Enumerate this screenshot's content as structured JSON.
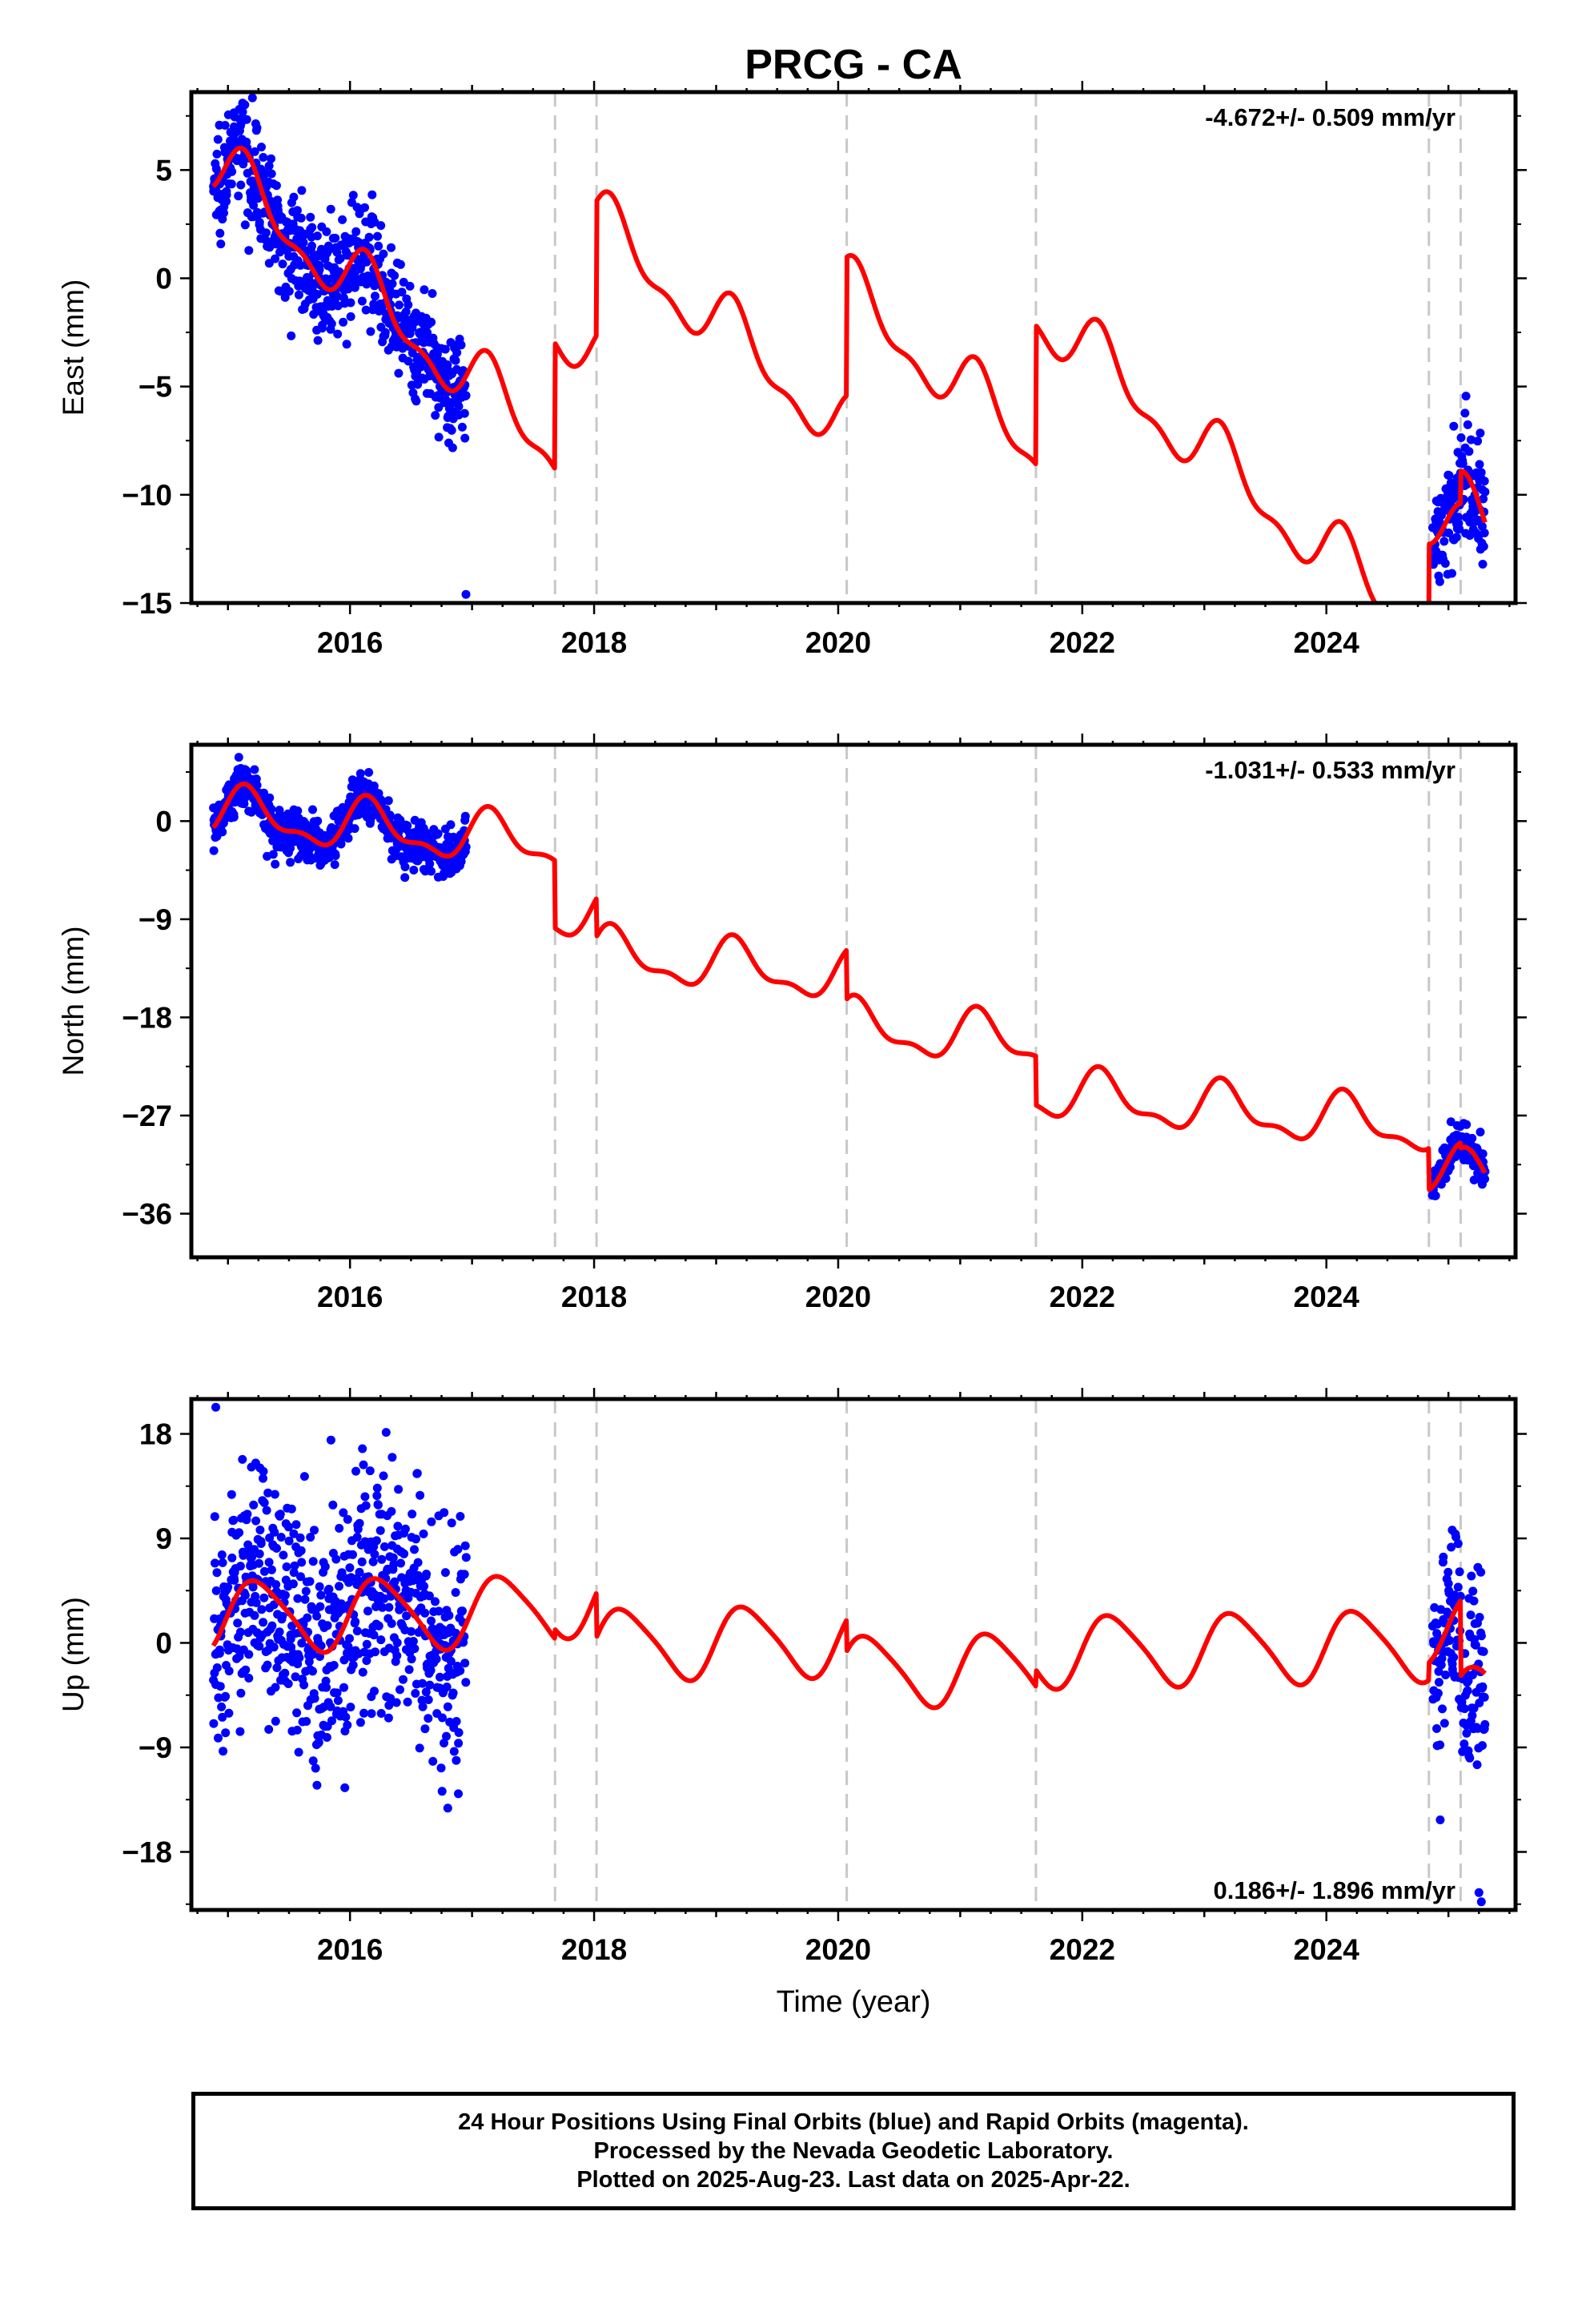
{
  "title": "PRCG - CA",
  "xlabel": "Time (year)",
  "colors": {
    "points": "#0000ff",
    "model": "#ff0000",
    "breaks": "#c8c8c8",
    "frame": "#000000"
  },
  "chart_data": [
    {
      "type": "scatter",
      "panel": "east",
      "ylabel": "East (mm)",
      "rate": "-4.672+/- 0.509 mm/yr",
      "rate_position": "top-right",
      "xlim": [
        2014.7,
        2025.55
      ],
      "ylim": [
        -15,
        8.6
      ],
      "xticks": [
        2016,
        2018,
        2020,
        2022,
        2024
      ],
      "yticks": [
        5,
        0,
        -5,
        -10,
        -15
      ],
      "ytick_labels": [
        "5",
        "0",
        "−5",
        "−10",
        "−15"
      ],
      "breaks": [
        2017.68,
        2018.02,
        2020.07,
        2021.62,
        2024.84,
        2025.1
      ],
      "series": [
        {
          "kind": "points",
          "data_segments": [
            {
              "start": 2014.88,
              "end": 2016.95,
              "model_offset": 0,
              "noise": 1.25
            },
            {
              "start": 2024.87,
              "end": 2025.3,
              "model_offset": 0,
              "noise": 1.3
            }
          ],
          "outliers": [
            [
              2016.95,
              -14.6
            ]
          ]
        },
        {
          "kind": "model",
          "rate": -4.672,
          "ref_year": 2015.0,
          "ref_value": 4.6,
          "seasonal": [
            {
              "period": 1.0,
              "amp": 1.35,
              "phase": 0.55
            },
            {
              "period": 0.5,
              "amp": 0.65,
              "phase": 0.1
            }
          ],
          "offsets": [
            {
              "t": 2017.68,
              "delta": 5.8
            },
            {
              "t": 2018.02,
              "delta": 6.2
            },
            {
              "t": 2020.07,
              "delta": 6.4
            },
            {
              "t": 2021.62,
              "delta": 6.4
            },
            {
              "t": 2024.84,
              "delta": 5.5
            },
            {
              "t": 2025.1,
              "delta": 1.5
            }
          ],
          "xrange": [
            2014.88,
            2025.3
          ]
        }
      ]
    },
    {
      "type": "scatter",
      "panel": "north",
      "ylabel": "North (mm)",
      "rate": "-1.031+/- 0.533 mm/yr",
      "rate_position": "top-right",
      "xlim": [
        2014.7,
        2025.55
      ],
      "ylim": [
        -40,
        7
      ],
      "xticks": [
        2016,
        2018,
        2020,
        2022,
        2024
      ],
      "yticks": [
        0,
        -9,
        -18,
        -27,
        -36
      ],
      "ytick_labels": [
        "0",
        "−9",
        "−18",
        "−27",
        "−36"
      ],
      "breaks": [
        2017.68,
        2018.02,
        2020.07,
        2021.62,
        2024.84,
        2025.1
      ],
      "series": [
        {
          "kind": "points",
          "data_segments": [
            {
              "start": 2014.88,
              "end": 2016.95,
              "model_offset": 0,
              "noise": 1.1
            },
            {
              "start": 2024.87,
              "end": 2025.3,
              "model_offset": 0,
              "noise": 0.8
            }
          ],
          "outliers": []
        },
        {
          "kind": "model",
          "rate": -1.031,
          "ref_year": 2015.0,
          "ref_value": 0.6,
          "seasonal": [
            {
              "period": 1.0,
              "amp": 2.1,
              "phase": 0.55
            },
            {
              "period": 0.5,
              "amp": 0.9,
              "phase": 0.1
            }
          ],
          "offsets": [
            {
              "t": 2017.68,
              "delta": -6.2
            },
            {
              "t": 2018.02,
              "delta": -3.5
            },
            {
              "t": 2020.07,
              "delta": -4.5
            },
            {
              "t": 2021.62,
              "delta": -4.5
            },
            {
              "t": 2024.84,
              "delta": -3.8
            },
            {
              "t": 2025.1,
              "delta": -0.5
            }
          ],
          "xrange": [
            2014.88,
            2025.3
          ]
        }
      ]
    },
    {
      "type": "scatter",
      "panel": "up",
      "ylabel": "Up (mm)",
      "rate": "0.186+/- 1.896 mm/yr",
      "rate_position": "bottom-right",
      "xlim": [
        2014.7,
        2025.55
      ],
      "ylim": [
        -23,
        21
      ],
      "xticks": [
        2016,
        2018,
        2020,
        2022,
        2024
      ],
      "yticks": [
        18,
        9,
        0,
        -9,
        -18
      ],
      "ytick_labels": [
        "18",
        "9",
        "0",
        "−9",
        "−18"
      ],
      "breaks": [
        2017.68,
        2018.02,
        2020.07,
        2021.62,
        2024.84,
        2025.1
      ],
      "series": [
        {
          "kind": "points",
          "data_segments": [
            {
              "start": 2014.88,
              "end": 2016.95,
              "model_offset": 0,
              "noise": 5.2
            },
            {
              "start": 2024.87,
              "end": 2025.3,
              "model_offset": -1,
              "noise": 4.2
            }
          ],
          "outliers": [
            [
              2014.9,
              20.3
            ],
            [
              2025.27,
              -22.3
            ],
            [
              2025.25,
              -21.5
            ]
          ]
        },
        {
          "kind": "model",
          "rate": 0.186,
          "ref_year": 2015.0,
          "ref_value": 2.3,
          "seasonal": [
            {
              "period": 1.0,
              "amp": 3.0,
              "phase": 0.0
            },
            {
              "period": 0.5,
              "amp": 0.5,
              "phase": 0.3
            }
          ],
          "offsets": [
            {
              "t": 2017.68,
              "delta": 0.8
            },
            {
              "t": 2018.02,
              "delta": -3.8
            },
            {
              "t": 2020.07,
              "delta": -2.7
            },
            {
              "t": 2021.62,
              "delta": 1.4
            },
            {
              "t": 2024.84,
              "delta": 1.5
            },
            {
              "t": 2025.1,
              "delta": -6.5
            }
          ],
          "xrange": [
            2014.88,
            2025.3
          ]
        }
      ]
    }
  ],
  "footer": {
    "line1": "24 Hour Positions Using Final Orbits (blue) and Rapid Orbits (magenta).",
    "line2": "Processed by the Nevada Geodetic Laboratory.",
    "line3": "Plotted on 2025-Aug-23. Last data on 2025-Apr-22."
  }
}
